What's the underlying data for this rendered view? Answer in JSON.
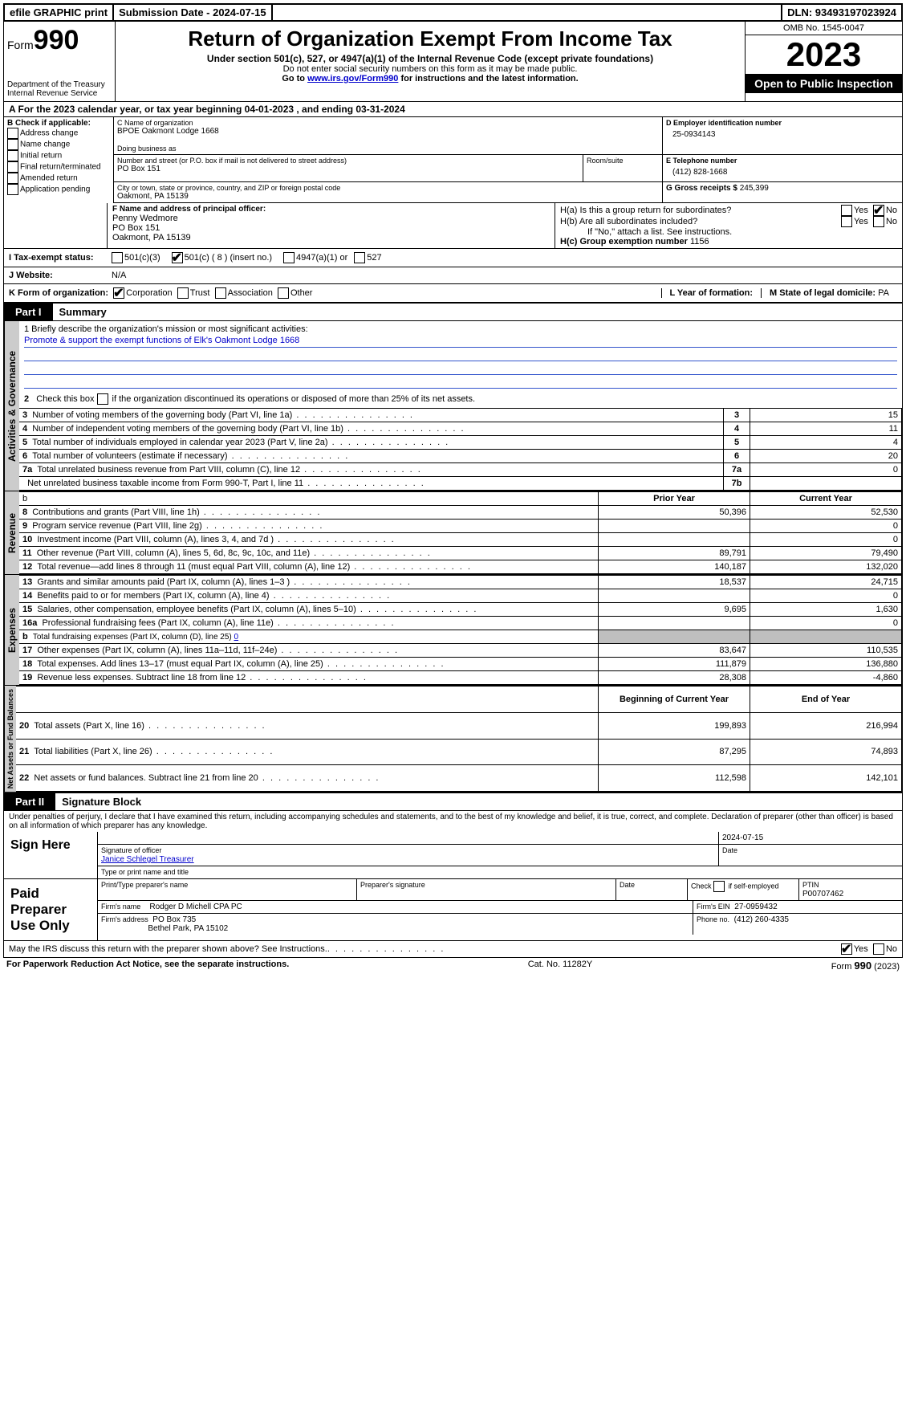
{
  "topbar": {
    "efile": "efile GRAPHIC print",
    "submission": "Submission Date - 2024-07-15",
    "dln": "DLN: 93493197023924"
  },
  "header": {
    "form_word": "Form",
    "form_num": "990",
    "dept": "Department of the Treasury\nInternal Revenue Service",
    "title": "Return of Organization Exempt From Income Tax",
    "subtitle": "Under section 501(c), 527, or 4947(a)(1) of the Internal Revenue Code (except private foundations)",
    "note1": "Do not enter social security numbers on this form as it may be made public.",
    "note2_pre": "Go to ",
    "note2_link": "www.irs.gov/Form990",
    "note2_post": " for instructions and the latest information.",
    "omb": "OMB No. 1545-0047",
    "year": "2023",
    "open": "Open to Public Inspection"
  },
  "line_a": "A  For the 2023 calendar year, or tax year beginning 04-01-2023    , and ending 03-31-2024",
  "box_b": {
    "title": "B Check if applicable:",
    "opts": [
      "Address change",
      "Name change",
      "Initial return",
      "Final return/terminated",
      "Amended return",
      "Application pending"
    ]
  },
  "box_c": {
    "label_name": "C Name of organization",
    "org": "BPOE Oakmont Lodge 1668",
    "dba_label": "Doing business as",
    "addr_label": "Number and street (or P.O. box if mail is not delivered to street address)",
    "room_label": "Room/suite",
    "addr": "PO Box 151",
    "city_label": "City or town, state or province, country, and ZIP or foreign postal code",
    "city": "Oakmont, PA  15139"
  },
  "box_d": {
    "label": "D Employer identification number",
    "val": "25-0934143"
  },
  "box_e": {
    "label": "E Telephone number",
    "val": "(412) 828-1668"
  },
  "box_g": {
    "label": "G Gross receipts $",
    "val": "245,399"
  },
  "box_f": {
    "label": "F  Name and address of principal officer:",
    "name": "Penny Wedmore",
    "addr1": "PO Box 151",
    "addr2": "Oakmont, PA  15139"
  },
  "box_h": {
    "a": "H(a)  Is this a group return for subordinates?",
    "b": "H(b)  Are all subordinates included?",
    "b_note": "If \"No,\" attach a list. See instructions.",
    "c_label": "H(c)  Group exemption number",
    "c_val": "1156"
  },
  "row_i": {
    "label": "I    Tax-exempt status:",
    "opt1": "501(c)(3)",
    "opt2": "501(c) ( 8 ) (insert no.)",
    "opt3": "4947(a)(1) or",
    "opt4": "527"
  },
  "row_j": {
    "label": "J    Website:",
    "val": "N/A"
  },
  "row_k": {
    "label": "K Form of organization:",
    "opts": [
      "Corporation",
      "Trust",
      "Association",
      "Other"
    ],
    "l_label": "L Year of formation:",
    "m_label": "M State of legal domicile:",
    "m_val": "PA"
  },
  "part1": {
    "tab": "Part I",
    "title": "Summary",
    "line1_label": "1   Briefly describe the organization's mission or most significant activities:",
    "mission": "Promote & support the exempt functions of Elk's Oakmont Lodge 1668",
    "line2": "2    Check this box        if the organization discontinued its operations or disposed of more than 25% of its net assets.",
    "gov_rows": [
      {
        "n": "3",
        "t": "Number of voting members of the governing body (Part VI, line 1a)",
        "box": "3",
        "v": "15"
      },
      {
        "n": "4",
        "t": "Number of independent voting members of the governing body (Part VI, line 1b)",
        "box": "4",
        "v": "11"
      },
      {
        "n": "5",
        "t": "Total number of individuals employed in calendar year 2023 (Part V, line 2a)",
        "box": "5",
        "v": "4"
      },
      {
        "n": "6",
        "t": "Total number of volunteers (estimate if necessary)",
        "box": "6",
        "v": "20"
      },
      {
        "n": "7a",
        "t": "Total unrelated business revenue from Part VIII, column (C), line 12",
        "box": "7a",
        "v": "0"
      },
      {
        "n": "",
        "t": "Net unrelated business taxable income from Form 990-T, Part I, line 11",
        "box": "7b",
        "v": ""
      }
    ],
    "col_prior": "Prior Year",
    "col_current": "Current Year",
    "rev_rows": [
      {
        "n": "8",
        "t": "Contributions and grants (Part VIII, line 1h)",
        "p": "50,396",
        "c": "52,530"
      },
      {
        "n": "9",
        "t": "Program service revenue (Part VIII, line 2g)",
        "p": "",
        "c": "0"
      },
      {
        "n": "10",
        "t": "Investment income (Part VIII, column (A), lines 3, 4, and 7d )",
        "p": "",
        "c": "0"
      },
      {
        "n": "11",
        "t": "Other revenue (Part VIII, column (A), lines 5, 6d, 8c, 9c, 10c, and 11e)",
        "p": "89,791",
        "c": "79,490"
      },
      {
        "n": "12",
        "t": "Total revenue—add lines 8 through 11 (must equal Part VIII, column (A), line 12)",
        "p": "140,187",
        "c": "132,020"
      }
    ],
    "exp_rows": [
      {
        "n": "13",
        "t": "Grants and similar amounts paid (Part IX, column (A), lines 1–3 )",
        "p": "18,537",
        "c": "24,715"
      },
      {
        "n": "14",
        "t": "Benefits paid to or for members (Part IX, column (A), line 4)",
        "p": "",
        "c": "0"
      },
      {
        "n": "15",
        "t": "Salaries, other compensation, employee benefits (Part IX, column (A), lines 5–10)",
        "p": "9,695",
        "c": "1,630"
      },
      {
        "n": "16a",
        "t": "Professional fundraising fees (Part IX, column (A), line 11e)",
        "p": "",
        "c": "0"
      },
      {
        "n": "b",
        "t": "Total fundraising expenses (Part IX, column (D), line 25) 0",
        "p": "SHADE",
        "c": "SHADE"
      },
      {
        "n": "17",
        "t": "Other expenses (Part IX, column (A), lines 11a–11d, 11f–24e)",
        "p": "83,647",
        "c": "110,535"
      },
      {
        "n": "18",
        "t": "Total expenses. Add lines 13–17 (must equal Part IX, column (A), line 25)",
        "p": "111,879",
        "c": "136,880"
      },
      {
        "n": "19",
        "t": "Revenue less expenses. Subtract line 18 from line 12",
        "p": "28,308",
        "c": "-4,860"
      }
    ],
    "col_beg": "Beginning of Current Year",
    "col_end": "End of Year",
    "net_rows": [
      {
        "n": "20",
        "t": "Total assets (Part X, line 16)",
        "p": "199,893",
        "c": "216,994"
      },
      {
        "n": "21",
        "t": "Total liabilities (Part X, line 26)",
        "p": "87,295",
        "c": "74,893"
      },
      {
        "n": "22",
        "t": "Net assets or fund balances. Subtract line 21 from line 20",
        "p": "112,598",
        "c": "142,101"
      }
    ]
  },
  "vtabs": {
    "gov": "Activities & Governance",
    "rev": "Revenue",
    "exp": "Expenses",
    "net": "Net Assets or Fund Balances"
  },
  "part2": {
    "tab": "Part II",
    "title": "Signature Block",
    "decl": "Under penalties of perjury, I declare that I have examined this return, including accompanying schedules and statements, and to the best of my knowledge and belief, it is true, correct, and complete. Declaration of preparer (other than officer) is based on all information of which preparer has any knowledge.",
    "sign_here": "Sign Here",
    "sig_date": "2024-07-15",
    "sig_officer_label": "Signature of officer",
    "sig_date_label": "Date",
    "officer_name": "Janice Schlegel  Treasurer",
    "officer_type_label": "Type or print name and title",
    "paid": "Paid Preparer Use Only",
    "prep_name_label": "Print/Type preparer's name",
    "prep_sig_label": "Preparer's signature",
    "date_label": "Date",
    "self_emp": "Check        if self-employed",
    "ptin_label": "PTIN",
    "ptin": "P00707462",
    "firm_name_label": "Firm's name",
    "firm_name": "Rodger D Michell CPA PC",
    "firm_ein_label": "Firm's EIN",
    "firm_ein": "27-0959432",
    "firm_addr_label": "Firm's address",
    "firm_addr1": "PO Box 735",
    "firm_addr2": "Bethel Park, PA  15102",
    "phone_label": "Phone no.",
    "phone": "(412) 260-4335",
    "discuss": "May the IRS discuss this return with the preparer shown above? See Instructions."
  },
  "footer": {
    "left": "For Paperwork Reduction Act Notice, see the separate instructions.",
    "mid": "Cat. No. 11282Y",
    "right_pre": "Form ",
    "right_form": "990",
    "right_post": " (2023)"
  },
  "yn": {
    "yes": "Yes",
    "no": "No"
  }
}
